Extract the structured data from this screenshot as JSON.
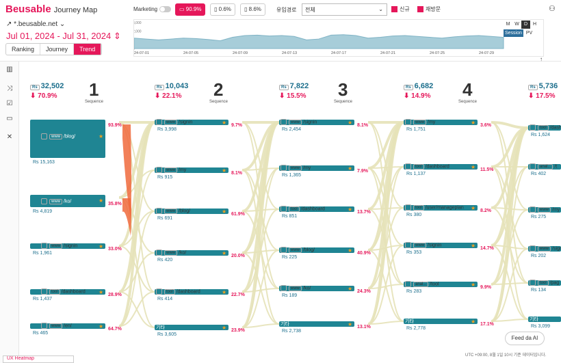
{
  "app": {
    "logo": "Beusable",
    "title": "Journey Map"
  },
  "site": {
    "domain": "*.beusable.net",
    "date_range": "Jul 01, 2024 - Jul 31, 2024"
  },
  "tabs": [
    "Ranking",
    "Journey",
    "Trend"
  ],
  "filters": {
    "marketing": "Marketing",
    "devices": [
      "90.9%",
      "0.6%",
      "8.6%"
    ],
    "channel_label": "유입경로",
    "channel_value": "전체",
    "new_label": "신규",
    "return_label": "재방문"
  },
  "mini_chart": {
    "y_ticks": [
      "3,000",
      "2,000",
      "1,000",
      "0"
    ],
    "x_ticks": [
      "24-07-01",
      "24-07-05",
      "24-07-09",
      "24-07-13",
      "24-07-17",
      "24-07-21",
      "24-07-25",
      "24-07-29"
    ],
    "values": [
      1200,
      1100,
      1000,
      1100,
      1200,
      1150,
      1050,
      900,
      1300,
      1500,
      1550,
      1450,
      1500,
      1400,
      1000,
      1100,
      1550,
      1600,
      1500,
      1200,
      1300,
      1450,
      1500,
      1400,
      1300,
      1200,
      1350,
      1450,
      1500,
      1400,
      1300
    ],
    "color": "#a7cdd9"
  },
  "granularity": {
    "options": [
      "M",
      "W",
      "D",
      "H"
    ],
    "selected": "D"
  },
  "metric": {
    "options": [
      "Session",
      "PV"
    ],
    "selected": "Session"
  },
  "sequences": [
    {
      "num": "1",
      "label": "Sequence",
      "sessions": "32,502",
      "exit": "70.9%"
    },
    {
      "num": "2",
      "label": "Sequence",
      "sessions": "10,043",
      "exit": "22.1%"
    },
    {
      "num": "3",
      "label": "Sequence",
      "sessions": "7,822",
      "exit": "15.5%"
    },
    {
      "num": "4",
      "label": "Sequence",
      "sessions": "6,682",
      "exit": "14.9%"
    },
    {
      "num": "",
      "label": "",
      "sessions": "5,736",
      "exit": "17.5%"
    }
  ],
  "nodes": [
    [
      {
        "tag": "www",
        "path": "/blog/",
        "count": "15,163",
        "pct": "93.9%"
      },
      {
        "tag": "www",
        "path": "/ko/",
        "count": "4,819",
        "pct": "35.8%"
      },
      {
        "tag": "www",
        "path": "/signin",
        "count": "1,961",
        "pct": "33.0%"
      },
      {
        "tag": "tool",
        "path": "/dashboard",
        "count": "1,437",
        "pct": "28.9%"
      },
      {
        "tag": "www",
        "path": "/en/",
        "count": "465",
        "pct": "64.7%"
      }
    ],
    [
      {
        "tag": "www",
        "path": "/signin",
        "count": "3,998",
        "pct": "9.7%"
      },
      {
        "tag": "www",
        "path": "/my",
        "count": "915",
        "pct": "8.1%"
      },
      {
        "tag": "www",
        "path": "/blog/",
        "count": "691",
        "pct": "61.9%"
      },
      {
        "tag": "www",
        "path": "/ko/",
        "count": "420",
        "pct": "20.0%"
      },
      {
        "tag": "tool",
        "path": "/dashboard",
        "count": "414",
        "pct": "22.7%"
      },
      {
        "tag": "",
        "path": "기타",
        "count": "3,605",
        "pct": "23.9%"
      }
    ],
    [
      {
        "tag": "www",
        "path": "/signin",
        "count": "2,454",
        "pct": "8.1%"
      },
      {
        "tag": "www",
        "path": "/my",
        "count": "1,365",
        "pct": "7.9%"
      },
      {
        "tag": "tool",
        "path": "/dashboard",
        "count": "851",
        "pct": "13.7%"
      },
      {
        "tag": "www",
        "path": "/blog/",
        "count": "225",
        "pct": "40.9%"
      },
      {
        "tag": "www",
        "path": "/ko/",
        "count": "189",
        "pct": "24.3%"
      },
      {
        "tag": "",
        "path": "기타",
        "count": "2,738",
        "pct": "13.1%"
      }
    ],
    [
      {
        "tag": "www",
        "path": "/my",
        "count": "1,751",
        "pct": "3.6%"
      },
      {
        "tag": "tool",
        "path": "/dashboard",
        "count": "1,137",
        "pct": "11.5%"
      },
      {
        "tag": "tool",
        "path": "/user/manageplan",
        "count": "380",
        "pct": "8.2%"
      },
      {
        "tag": "www",
        "path": "/signin",
        "count": "353",
        "pct": "14.7%"
      },
      {
        "tag": "anal...",
        "path": "/tool",
        "count": "283",
        "pct": "9.9%"
      },
      {
        "tag": "",
        "path": "기타",
        "count": "2,778",
        "pct": "17.1%"
      }
    ],
    [
      {
        "tag": "tool",
        "path": "/dashb",
        "count": "1,624",
        "pct": ""
      },
      {
        "tag": "anal...",
        "path": "/t",
        "count": "402",
        "pct": ""
      },
      {
        "tag": "www",
        "path": "/my",
        "count": "275",
        "pct": ""
      },
      {
        "tag": "www",
        "path": "/signi",
        "count": "202",
        "pct": ""
      },
      {
        "tag": "tool",
        "path": "/pag",
        "count": "134",
        "pct": ""
      },
      {
        "tag": "",
        "path": "기타",
        "count": "3,099",
        "pct": ""
      }
    ]
  ],
  "feed_ai": "Feed da AI",
  "footer": "UTC +09:00, 8월 1일 10시 기준 데이터입니다.",
  "ux_heatmap": "UX Heatmap"
}
